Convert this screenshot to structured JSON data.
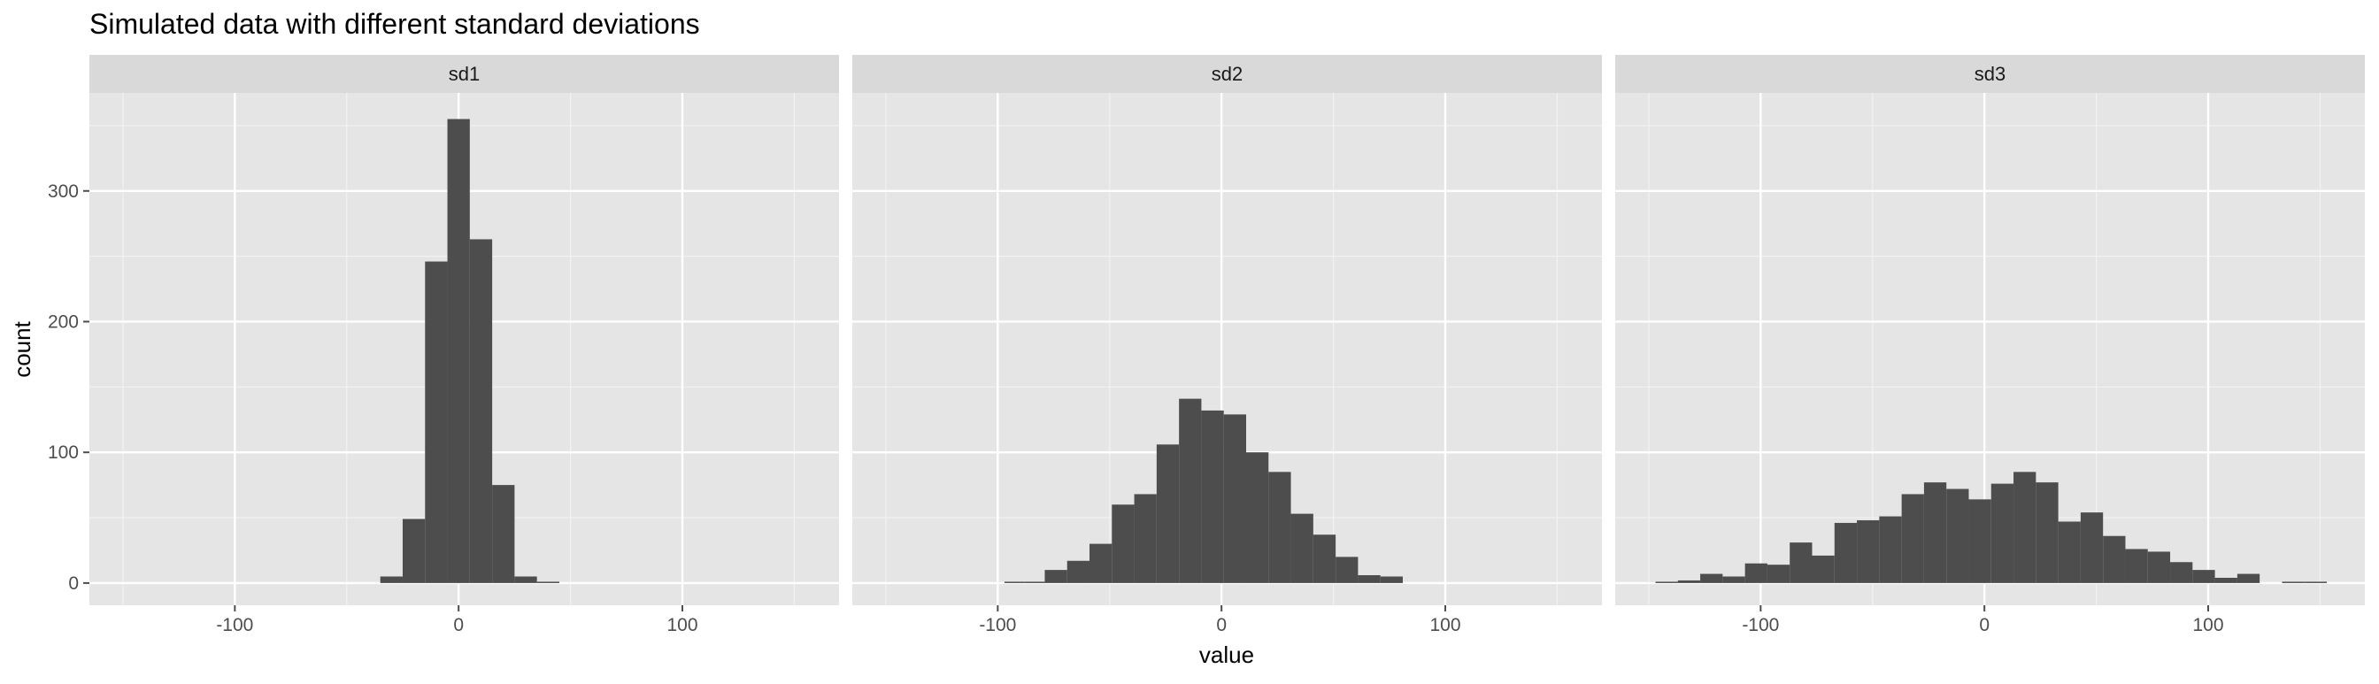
{
  "chart_data": {
    "type": "histogram",
    "title": "Simulated data with different standard deviations",
    "xlabel": "value",
    "ylabel": "count",
    "xlim": [
      -165,
      170
    ],
    "ylim": [
      -17,
      375
    ],
    "x_ticks": [
      -100,
      0,
      100
    ],
    "x_tick_labels": [
      "-100",
      "0",
      "100"
    ],
    "y_ticks": [
      0,
      100,
      200,
      300
    ],
    "y_tick_labels": [
      "0",
      "100",
      "200",
      "300"
    ],
    "grid": true,
    "legend": "none",
    "panels": [
      {
        "name": "sd1",
        "bins": [
          {
            "x0": -35,
            "x1": -25,
            "count": 5
          },
          {
            "x0": -25,
            "x1": -15,
            "count": 49
          },
          {
            "x0": -15,
            "x1": -5,
            "count": 246
          },
          {
            "x0": -5,
            "x1": 5,
            "count": 355
          },
          {
            "x0": 5,
            "x1": 15,
            "count": 263
          },
          {
            "x0": 15,
            "x1": 25,
            "count": 75
          },
          {
            "x0": 25,
            "x1": 35,
            "count": 5
          },
          {
            "x0": 35,
            "x1": 45,
            "count": 1
          }
        ]
      },
      {
        "name": "sd2",
        "bins": [
          {
            "x0": -97,
            "x1": -88,
            "count": 1
          },
          {
            "x0": -88,
            "x1": -79,
            "count": 1
          },
          {
            "x0": -79,
            "x1": -69,
            "count": 10
          },
          {
            "x0": -69,
            "x1": -59,
            "count": 17
          },
          {
            "x0": -59,
            "x1": -49,
            "count": 30
          },
          {
            "x0": -49,
            "x1": -39,
            "count": 60
          },
          {
            "x0": -39,
            "x1": -29,
            "count": 68
          },
          {
            "x0": -29,
            "x1": -19,
            "count": 106
          },
          {
            "x0": -19,
            "x1": -9,
            "count": 141
          },
          {
            "x0": -9,
            "x1": 1,
            "count": 132
          },
          {
            "x0": 1,
            "x1": 11,
            "count": 129
          },
          {
            "x0": 11,
            "x1": 21,
            "count": 100
          },
          {
            "x0": 21,
            "x1": 31,
            "count": 85
          },
          {
            "x0": 31,
            "x1": 41,
            "count": 53
          },
          {
            "x0": 41,
            "x1": 51,
            "count": 37
          },
          {
            "x0": 51,
            "x1": 61,
            "count": 20
          },
          {
            "x0": 61,
            "x1": 71,
            "count": 6
          },
          {
            "x0": 71,
            "x1": 81,
            "count": 5
          }
        ]
      },
      {
        "name": "sd3",
        "bins": [
          {
            "x0": -147,
            "x1": -137,
            "count": 1
          },
          {
            "x0": -137,
            "x1": -127,
            "count": 2
          },
          {
            "x0": -127,
            "x1": -117,
            "count": 7
          },
          {
            "x0": -117,
            "x1": -107,
            "count": 5
          },
          {
            "x0": -107,
            "x1": -97,
            "count": 15
          },
          {
            "x0": -97,
            "x1": -87,
            "count": 14
          },
          {
            "x0": -87,
            "x1": -77,
            "count": 31
          },
          {
            "x0": -77,
            "x1": -67,
            "count": 21
          },
          {
            "x0": -67,
            "x1": -57,
            "count": 46
          },
          {
            "x0": -57,
            "x1": -47,
            "count": 48
          },
          {
            "x0": -47,
            "x1": -37,
            "count": 51
          },
          {
            "x0": -37,
            "x1": -27,
            "count": 68
          },
          {
            "x0": -27,
            "x1": -17,
            "count": 77
          },
          {
            "x0": -17,
            "x1": -7,
            "count": 72
          },
          {
            "x0": -7,
            "x1": 3,
            "count": 64
          },
          {
            "x0": 3,
            "x1": 13,
            "count": 76
          },
          {
            "x0": 13,
            "x1": 23,
            "count": 85
          },
          {
            "x0": 23,
            "x1": 33,
            "count": 77
          },
          {
            "x0": 33,
            "x1": 43,
            "count": 47
          },
          {
            "x0": 43,
            "x1": 53,
            "count": 54
          },
          {
            "x0": 53,
            "x1": 63,
            "count": 36
          },
          {
            "x0": 63,
            "x1": 73,
            "count": 26
          },
          {
            "x0": 73,
            "x1": 83,
            "count": 24
          },
          {
            "x0": 83,
            "x1": 93,
            "count": 16
          },
          {
            "x0": 93,
            "x1": 103,
            "count": 10
          },
          {
            "x0": 103,
            "x1": 113,
            "count": 4
          },
          {
            "x0": 113,
            "x1": 123,
            "count": 7
          },
          {
            "x0": 123,
            "x1": 133,
            "count": 0
          },
          {
            "x0": 133,
            "x1": 143,
            "count": 1
          },
          {
            "x0": 143,
            "x1": 153,
            "count": 1
          }
        ]
      }
    ]
  },
  "colors": {
    "page_background": "#ffffff",
    "panel_background": "#e5e5e5",
    "strip_background": "#d9d9d9",
    "grid_major": "#ffffff",
    "grid_minor": "#f2f2f2",
    "bar_fill": "#4d4d4d",
    "axis_text": "#4d4d4d",
    "title_text": "#000000",
    "strip_text": "#1a1a1a"
  }
}
